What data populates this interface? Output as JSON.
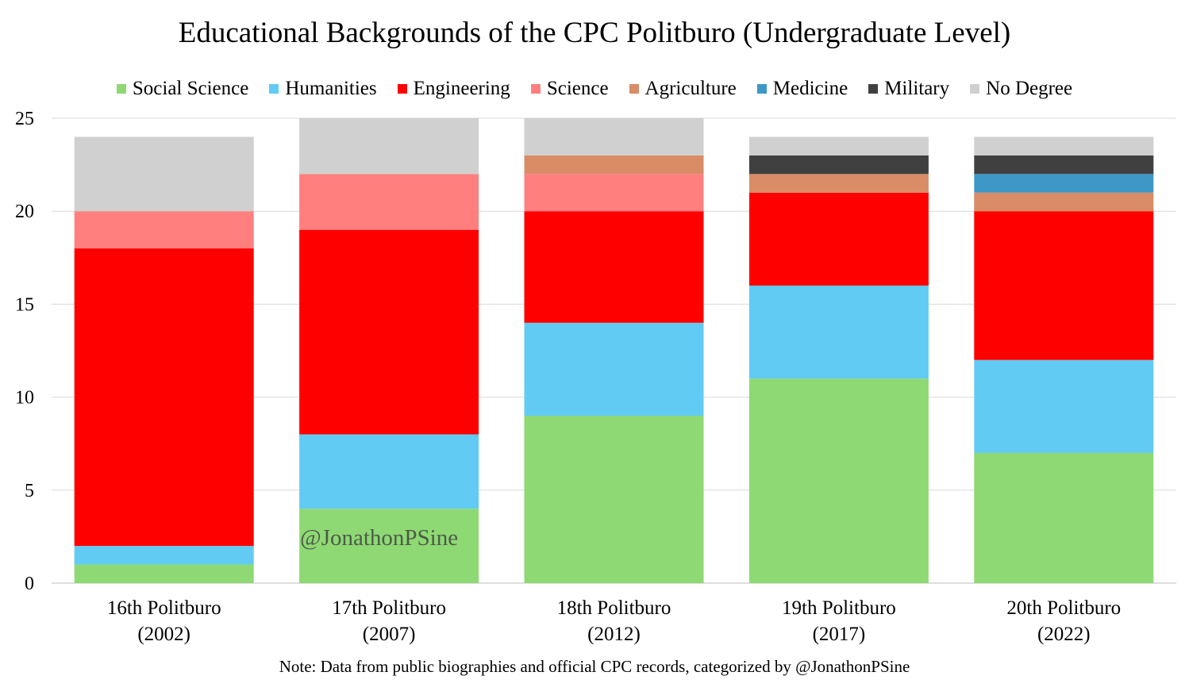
{
  "chart_data": {
    "type": "bar",
    "stacked": true,
    "title": "Educational Backgrounds of the CPC Politburo (Undergraduate Level)",
    "categories": [
      {
        "line1": "16th Politburo",
        "line2": "(2002)"
      },
      {
        "line1": "17th Politburo",
        "line2": "(2007)"
      },
      {
        "line1": "18th Politburo",
        "line2": "(2012)"
      },
      {
        "line1": "19th Politburo",
        "line2": "(2017)"
      },
      {
        "line1": "20th Politburo",
        "line2": "(2022)"
      }
    ],
    "series": [
      {
        "name": "Social Science",
        "color": "#8ed973",
        "values": [
          1,
          4,
          9,
          11,
          7
        ]
      },
      {
        "name": "Humanities",
        "color": "#61cbf3",
        "values": [
          1,
          4,
          5,
          5,
          5
        ]
      },
      {
        "name": "Engineering",
        "color": "#ff0000",
        "values": [
          16,
          11,
          6,
          5,
          8
        ]
      },
      {
        "name": "Science",
        "color": "#ff7f7f",
        "values": [
          2,
          3,
          2,
          0,
          0
        ]
      },
      {
        "name": "Agriculture",
        "color": "#d98c66",
        "values": [
          0,
          0,
          1,
          1,
          1
        ]
      },
      {
        "name": "Medicine",
        "color": "#3d98c8",
        "values": [
          0,
          0,
          0,
          0,
          1
        ]
      },
      {
        "name": "Military",
        "color": "#404040",
        "values": [
          0,
          0,
          0,
          1,
          1
        ]
      },
      {
        "name": "No Degree",
        "color": "#d0d0d0",
        "values": [
          4,
          3,
          2,
          1,
          1
        ]
      }
    ],
    "ylim": [
      0,
      25
    ],
    "yticks": [
      0,
      5,
      10,
      15,
      20,
      25
    ],
    "grid": true,
    "legend": "top"
  },
  "watermark": "@JonathonPSine",
  "note": "Note: Data from public biographies and official CPC records, categorized by @JonathonPSine"
}
